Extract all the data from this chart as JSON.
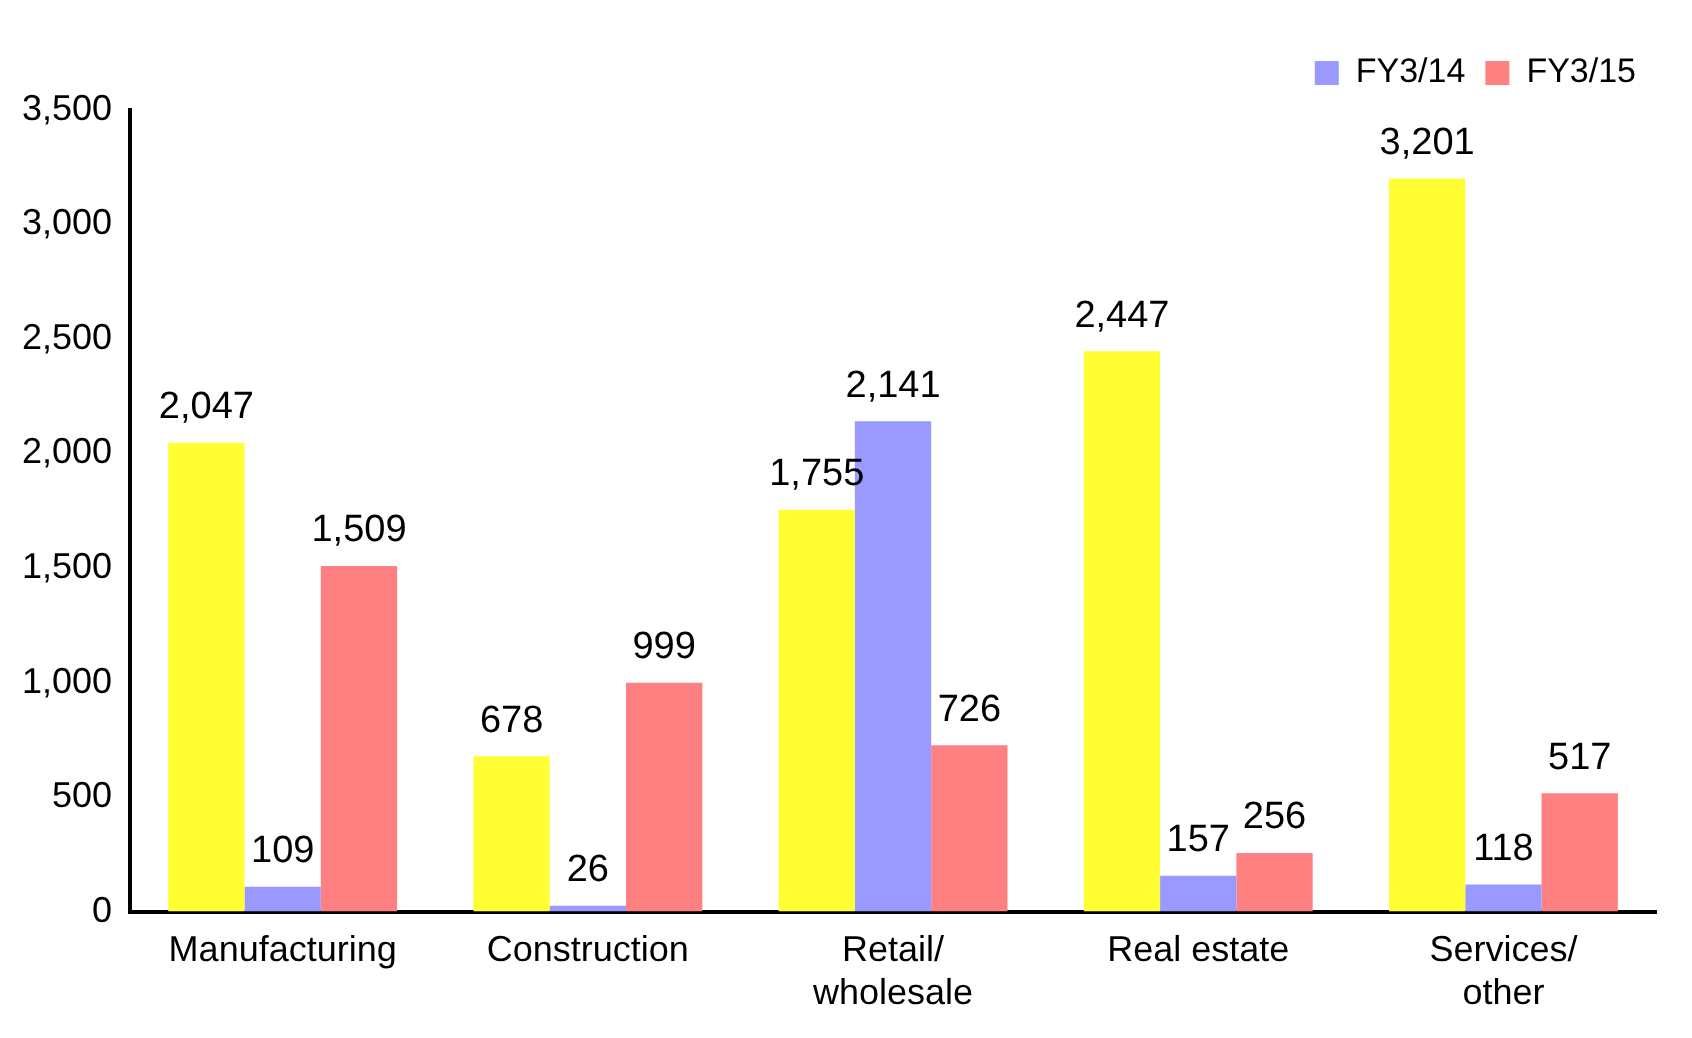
{
  "chart_data": {
    "type": "bar",
    "categories": [
      "Manufacturing",
      "Construction",
      "Retail/\nwholesale",
      "Real estate",
      "Services/\nother"
    ],
    "series": [
      {
        "color": "#ffff33",
        "values": [
          2047,
          678,
          1755,
          2447,
          3201
        ],
        "value_labels": [
          "2,047",
          "678",
          "1,755",
          "2,447",
          "3,201"
        ]
      },
      {
        "name": "FY3/14",
        "color": "#9999ff",
        "values": [
          109,
          26,
          2141,
          157,
          118
        ],
        "value_labels": [
          "109",
          "26",
          "2,141",
          "157",
          "118"
        ]
      },
      {
        "name": "FY3/15",
        "color": "#ff8080",
        "values": [
          1509,
          999,
          726,
          256,
          517
        ],
        "value_labels": [
          "1,509",
          "999",
          "726",
          "256",
          "517"
        ]
      }
    ],
    "ylim": [
      0,
      3500
    ],
    "yticks": [
      0,
      500,
      {
        "value": 1000,
        "label": "1,000"
      },
      {
        "value": 1500,
        "label": "1,500"
      },
      {
        "value": 2000,
        "label": "2,000"
      },
      {
        "value": 2500,
        "label": "2,500"
      },
      {
        "value": 3000,
        "label": "3,000"
      },
      {
        "value": 3500,
        "label": "3,500"
      }
    ],
    "grid": false,
    "legend": "top right"
  }
}
